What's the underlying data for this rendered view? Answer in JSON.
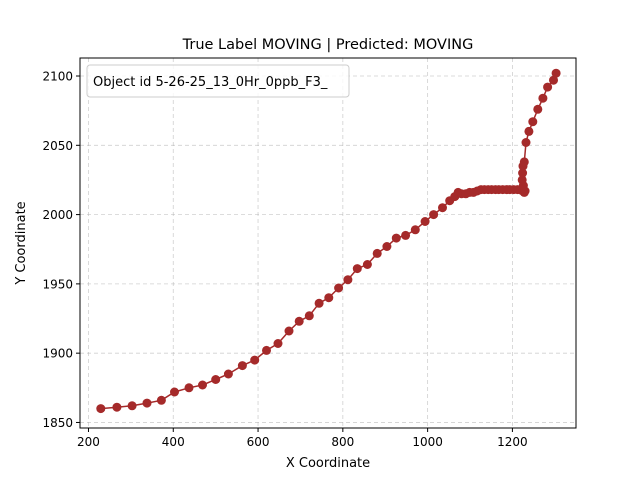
{
  "chart_data": {
    "type": "line",
    "title": "True Label MOVING | Predicted: MOVING",
    "xlabel": "X Coordinate",
    "ylabel": "Y Coordinate",
    "xlim": [
      180,
      1350
    ],
    "ylim": [
      1846,
      2113
    ],
    "xticks": [
      200,
      400,
      600,
      800,
      1000,
      1200
    ],
    "yticks": [
      1850,
      1900,
      1950,
      2000,
      2050,
      2100
    ],
    "grid": true,
    "legend": {
      "label": "Object id 5-26-25_13_0Hr_0ppb_F3_",
      "placement": "top-left"
    },
    "series": [
      {
        "name": "Object id 5-26-25_13_0Hr_0ppb_F3_",
        "color": "#a52a2a",
        "x": [
          229,
          267,
          303,
          338,
          372,
          403,
          437,
          469,
          500,
          530,
          563,
          592,
          620,
          647,
          673,
          697,
          721,
          744,
          767,
          790,
          812,
          834,
          858,
          881,
          904,
          926,
          948,
          971,
          994,
          1014,
          1035,
          1052,
          1064,
          1072,
          1080,
          1090,
          1099,
          1108,
          1117,
          1126,
          1134,
          1143,
          1151,
          1160,
          1168,
          1177,
          1186,
          1194,
          1203,
          1212,
          1218,
          1224,
          1228,
          1230,
          1226,
          1223,
          1224,
          1225,
          1228,
          1232,
          1239,
          1248,
          1260,
          1272,
          1283,
          1297,
          1303
        ],
        "y": [
          1860,
          1861,
          1862,
          1864,
          1866,
          1872,
          1875,
          1877,
          1881,
          1885,
          1891,
          1895,
          1902,
          1907,
          1916,
          1923,
          1927,
          1936,
          1940,
          1947,
          1953,
          1961,
          1964,
          1972,
          1977,
          1983,
          1985,
          1989,
          1995,
          2000,
          2005,
          2010,
          2013,
          2016,
          2015,
          2015,
          2016,
          2016,
          2017,
          2018,
          2018,
          2018,
          2018,
          2018,
          2018,
          2018,
          2018,
          2018,
          2018,
          2018,
          2018,
          2017,
          2016,
          2017,
          2021,
          2025,
          2030,
          2035,
          2038,
          2052,
          2060,
          2067,
          2076,
          2084,
          2092,
          2097,
          2102
        ]
      }
    ]
  }
}
